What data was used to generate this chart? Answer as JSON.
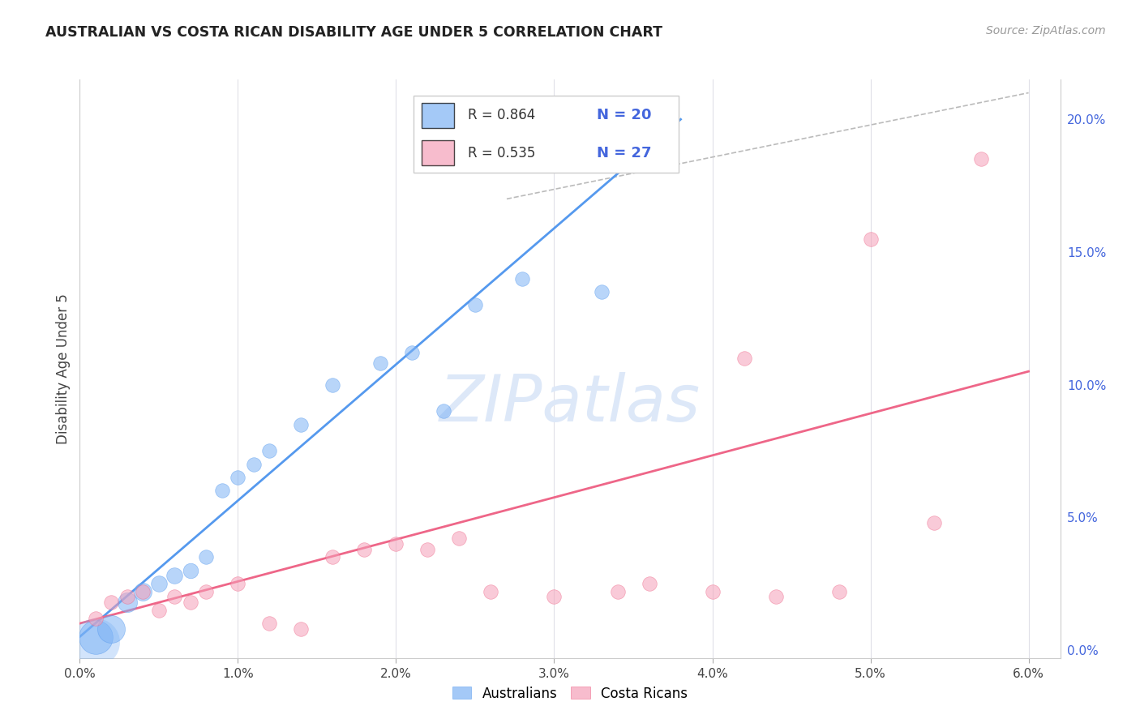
{
  "title": "AUSTRALIAN VS COSTA RICAN DISABILITY AGE UNDER 5 CORRELATION CHART",
  "source": "Source: ZipAtlas.com",
  "ylabel": "Disability Age Under 5",
  "background_color": "#ffffff",
  "grid_color": "#e0e0e8",
  "blue_color": "#7eb3f5",
  "pink_color": "#f5a0b8",
  "blue_line_color": "#5599ee",
  "pink_line_color": "#ee6688",
  "label_color": "#4466dd",
  "diag_color": "#bbbbbb",
  "watermark": "ZIPatlas",
  "watermark_color": "#dde8f8",
  "aus_x": [
    0.001,
    0.002,
    0.003,
    0.004,
    0.005,
    0.006,
    0.007,
    0.008,
    0.009,
    0.01,
    0.011,
    0.012,
    0.014,
    0.016,
    0.019,
    0.021,
    0.023,
    0.025,
    0.028,
    0.033
  ],
  "aus_y": [
    0.005,
    0.008,
    0.018,
    0.022,
    0.025,
    0.028,
    0.03,
    0.035,
    0.06,
    0.065,
    0.07,
    0.075,
    0.085,
    0.1,
    0.108,
    0.112,
    0.09,
    0.13,
    0.14,
    0.135
  ],
  "aus_sizes": [
    900,
    600,
    300,
    250,
    200,
    200,
    180,
    160,
    160,
    160,
    160,
    160,
    160,
    160,
    160,
    160,
    160,
    160,
    160,
    160
  ],
  "cr_x": [
    0.001,
    0.002,
    0.003,
    0.004,
    0.005,
    0.006,
    0.007,
    0.008,
    0.01,
    0.012,
    0.014,
    0.016,
    0.018,
    0.02,
    0.022,
    0.024,
    0.026,
    0.03,
    0.034,
    0.036,
    0.04,
    0.042,
    0.044,
    0.048,
    0.05,
    0.054,
    0.057
  ],
  "cr_y": [
    0.012,
    0.018,
    0.02,
    0.022,
    0.015,
    0.02,
    0.018,
    0.022,
    0.025,
    0.01,
    0.008,
    0.035,
    0.038,
    0.04,
    0.038,
    0.042,
    0.022,
    0.02,
    0.022,
    0.025,
    0.022,
    0.11,
    0.02,
    0.022,
    0.155,
    0.048,
    0.185
  ],
  "cr_sizes": [
    160,
    160,
    160,
    160,
    160,
    160,
    160,
    160,
    160,
    160,
    160,
    160,
    160,
    160,
    160,
    160,
    160,
    160,
    160,
    160,
    160,
    160,
    160,
    160,
    160,
    160,
    160
  ],
  "aus_line_x": [
    0.0,
    0.038
  ],
  "aus_line_y": [
    0.005,
    0.2
  ],
  "cr_line_x": [
    0.0,
    0.06
  ],
  "cr_line_y": [
    0.01,
    0.105
  ],
  "diag_line_x": [
    0.027,
    0.06
  ],
  "diag_line_y": [
    0.17,
    0.21
  ],
  "xlim": [
    0.0,
    0.062
  ],
  "ylim": [
    -0.003,
    0.215
  ],
  "x_ticks": [
    0.0,
    0.01,
    0.02,
    0.03,
    0.04,
    0.05,
    0.06
  ],
  "y_ticks_right": [
    0.0,
    0.05,
    0.1,
    0.15,
    0.2
  ]
}
